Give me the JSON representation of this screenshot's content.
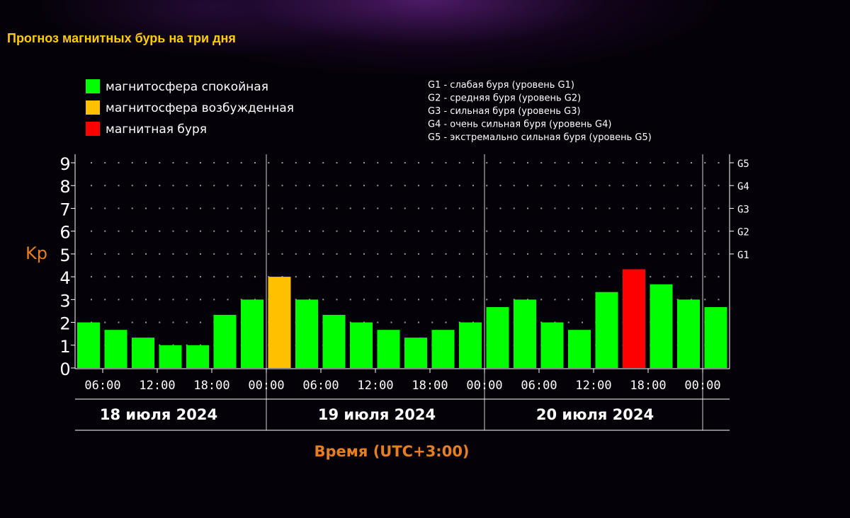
{
  "page": {
    "title": "Прогноз магнитных бурь на три дня"
  },
  "legend": {
    "items": [
      {
        "label": "магнитосфера спокойная",
        "color": "#00ff00"
      },
      {
        "label": "магнитосфера возбужденная",
        "color": "#ffc000"
      },
      {
        "label": "магнитная буря",
        "color": "#ff0000"
      }
    ],
    "storm_levels": [
      "G1 - слабая буря (уровень G1)",
      "G2 - средняя буря (уровень G2)",
      "G3 - сильная буря (уровень G3)",
      "G4 - очень сильная буря (уровень G4)",
      "G5 - экстремально сильная буря (уровень G5)"
    ]
  },
  "chart_data": {
    "type": "bar",
    "ylabel": "Kp",
    "xlabel": "Время (UTC+3:00)",
    "ylim": [
      0,
      9
    ],
    "y_ticks": [
      "0",
      "1",
      "2",
      "3",
      "4",
      "5",
      "6",
      "7",
      "8",
      "9"
    ],
    "right_ticks": [
      {
        "label": "G1",
        "value": 5
      },
      {
        "label": "G2",
        "value": 6
      },
      {
        "label": "G3",
        "value": 7
      },
      {
        "label": "G4",
        "value": 8
      },
      {
        "label": "G5",
        "value": 9
      }
    ],
    "x_tick_labels": [
      "06:00",
      "12:00",
      "18:00",
      "00:00",
      "06:00",
      "12:00",
      "18:00",
      "00:00",
      "06:00",
      "12:00",
      "18:00",
      "00:00"
    ],
    "days": [
      "18 июля 2024",
      "19 июля 2024",
      "20 июля 2024"
    ],
    "grid": "dotted",
    "values": [
      2.0,
      1.67,
      1.33,
      1.0,
      1.0,
      2.33,
      3.0,
      4.0,
      3.0,
      2.33,
      2.0,
      1.67,
      1.33,
      1.67,
      2.0,
      2.67,
      3.0,
      2.0,
      1.67,
      3.33,
      4.33,
      3.67,
      3.0,
      2.67
    ],
    "bar_colors": [
      "#00ff00",
      "#00ff00",
      "#00ff00",
      "#00ff00",
      "#00ff00",
      "#00ff00",
      "#00ff00",
      "#ffc000",
      "#00ff00",
      "#00ff00",
      "#00ff00",
      "#00ff00",
      "#00ff00",
      "#00ff00",
      "#00ff00",
      "#00ff00",
      "#00ff00",
      "#00ff00",
      "#00ff00",
      "#00ff00",
      "#ff0000",
      "#00ff00",
      "#00ff00",
      "#00ff00"
    ]
  }
}
